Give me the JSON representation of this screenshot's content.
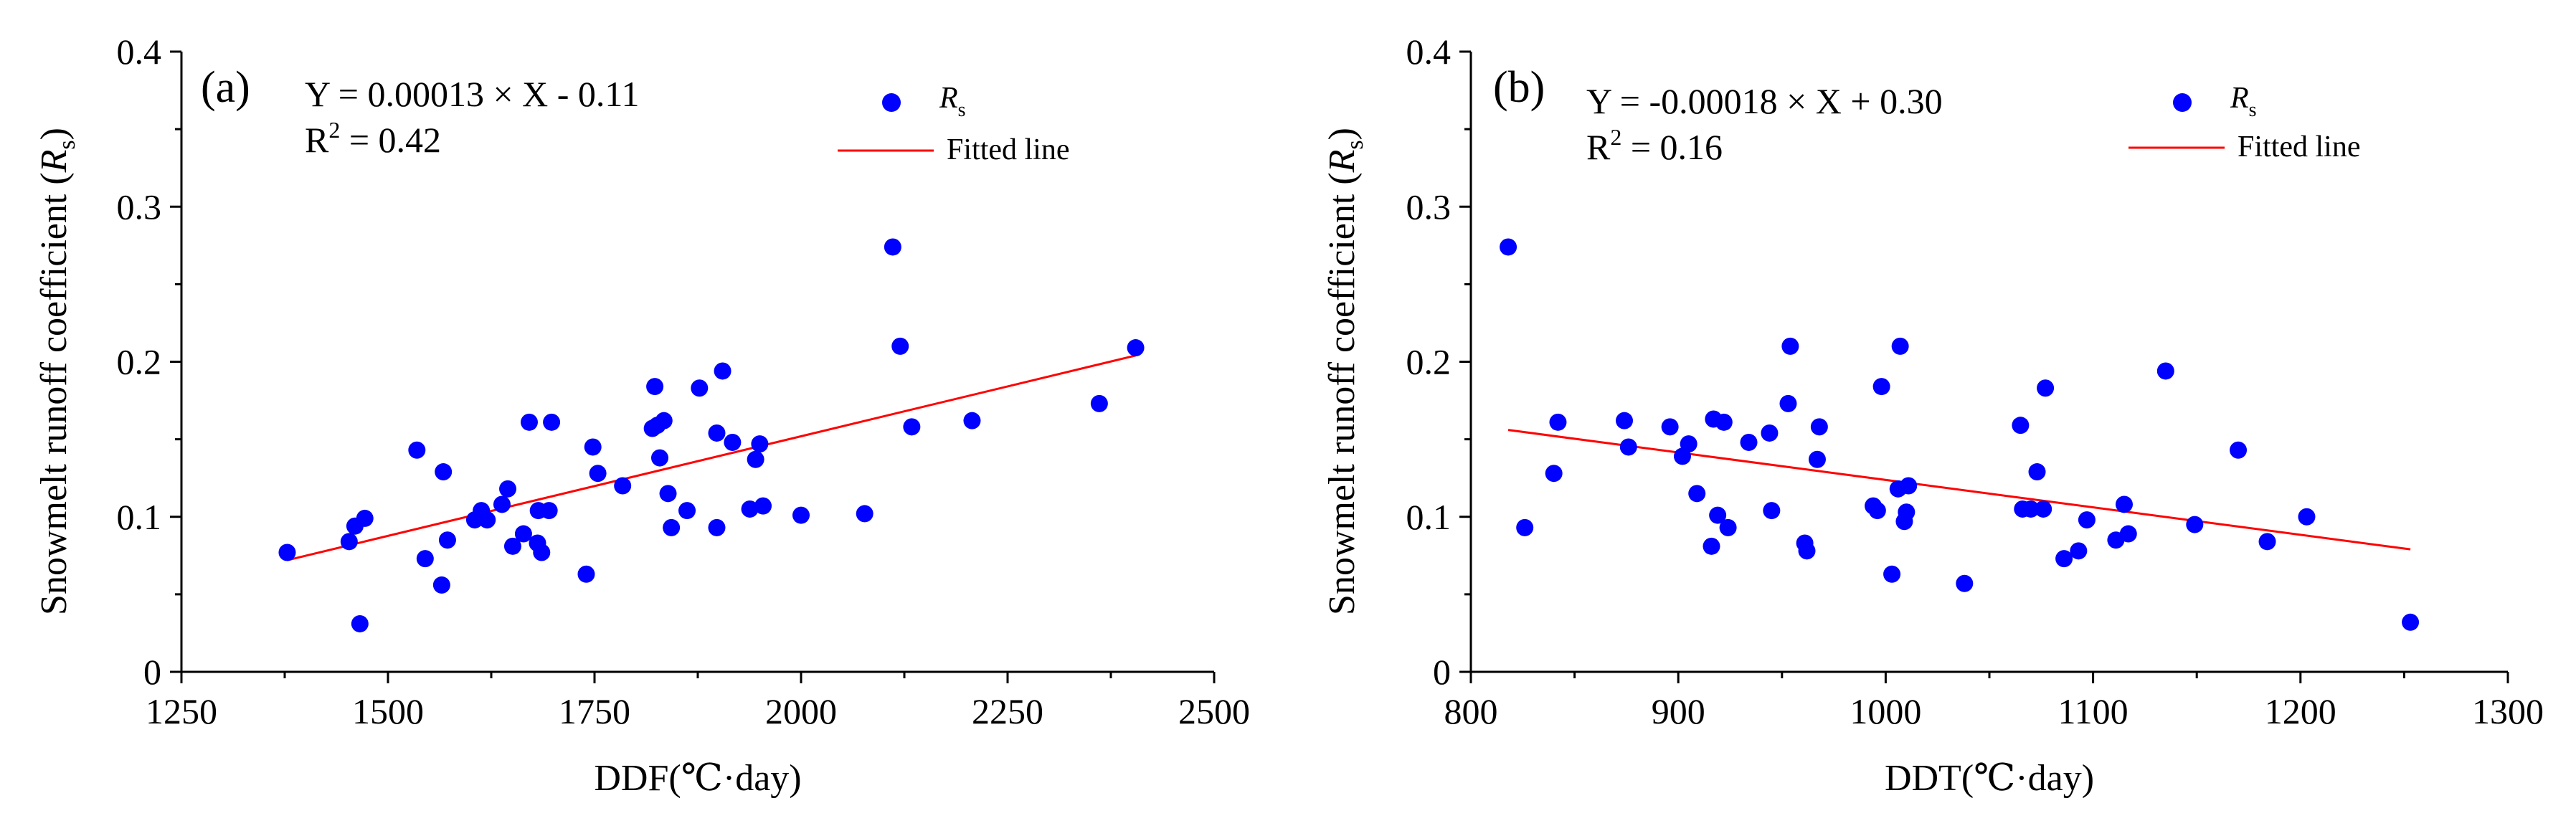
{
  "colors": {
    "points": "#0000ff",
    "fit": "#ff0000",
    "axis": "#000000"
  },
  "chart_data": [
    {
      "type": "scatter",
      "panel_label": "(a)",
      "equation": "Y = 0.00013  ×  X - 0.11",
      "r2_prefix": "R",
      "r2_sup": "2",
      "r2_value": " = 0.42",
      "xlabel": "DDF(℃·day)",
      "ylabel_main": "Snowmelt runoff coefficient (",
      "ylabel_italic": "R",
      "ylabel_sub": "s",
      "ylabel_end": ")",
      "legend": {
        "points_label": "R",
        "points_label_sub": "s",
        "line_label": "Fitted line",
        "position": "top-right"
      },
      "xlim": [
        1250,
        2500
      ],
      "ylim": [
        0,
        0.4
      ],
      "xticks": [
        1250,
        1500,
        1750,
        2000,
        2250,
        2500
      ],
      "xtick_labels": [
        "1250",
        "1500",
        "1750",
        "2000",
        "2250",
        "2500"
      ],
      "yticks": [
        0,
        0.1,
        0.2,
        0.3,
        0.4
      ],
      "ytick_labels": [
        "0",
        "0.1",
        "0.2",
        "0.3",
        "0.4"
      ],
      "fit": {
        "slope": 0.00013,
        "intercept": -0.11,
        "x_range": [
          1378,
          2405
        ],
        "y_range": [
          0.072,
          0.204
        ]
      },
      "points": {
        "x": [
          1378,
          1453,
          1460,
          1466,
          1472,
          1535,
          1545,
          1565,
          1567,
          1572,
          1605,
          1613,
          1620,
          1638,
          1645,
          1651,
          1664,
          1671,
          1681,
          1682,
          1686,
          1695,
          1698,
          1740,
          1748,
          1754,
          1784,
          1820,
          1823,
          1826,
          1829,
          1834,
          1839,
          1843,
          1862,
          1877,
          1898,
          1898,
          1905,
          1917,
          1938,
          1945,
          1950,
          1954,
          2000,
          2077,
          2111,
          2120,
          2134,
          2207,
          2361,
          2405
        ],
        "y": [
          0.077,
          0.084,
          0.094,
          0.031,
          0.099,
          0.143,
          0.073,
          0.056,
          0.129,
          0.085,
          0.098,
          0.104,
          0.098,
          0.108,
          0.118,
          0.081,
          0.089,
          0.161,
          0.083,
          0.104,
          0.077,
          0.104,
          0.161,
          0.063,
          0.145,
          0.128,
          0.12,
          0.157,
          0.184,
          0.159,
          0.138,
          0.162,
          0.115,
          0.093,
          0.104,
          0.183,
          0.154,
          0.093,
          0.194,
          0.148,
          0.105,
          0.137,
          0.147,
          0.107,
          0.101,
          0.102,
          0.274,
          0.21,
          0.158,
          0.162,
          0.173,
          0.209
        ]
      }
    },
    {
      "type": "scatter",
      "panel_label": "(b)",
      "equation": "Y = -0.00018  ×  X + 0.30",
      "r2_prefix": "R",
      "r2_sup": "2",
      "r2_value": " = 0.16",
      "xlabel": "DDT(℃·day)",
      "ylabel_main": "Snowmelt runoff coefficient (",
      "ylabel_italic": "R",
      "ylabel_sub": "s",
      "ylabel_end": ")",
      "legend": {
        "points_label": "R",
        "points_label_sub": "s",
        "line_label": "Fitted line",
        "position": "top-right"
      },
      "xlim": [
        800,
        1300
      ],
      "ylim": [
        0,
        0.4
      ],
      "xticks": [
        800,
        900,
        1000,
        1100,
        1200,
        1300
      ],
      "xtick_labels": [
        "800",
        "900",
        "1000",
        "1100",
        "1200",
        "1300"
      ],
      "yticks": [
        0,
        0.1,
        0.2,
        0.3,
        0.4
      ],
      "ytick_labels": [
        "0",
        "0.1",
        "0.2",
        "0.3",
        "0.4"
      ],
      "fit": {
        "slope": -0.00018,
        "intercept": 0.3,
        "x_range": [
          818,
          1253
        ],
        "y_range": [
          0.156,
          0.079
        ]
      },
      "points": {
        "x": [
          818,
          826,
          840,
          842,
          874,
          876,
          896,
          902,
          905,
          909,
          916,
          917,
          919,
          922,
          924,
          934,
          944,
          945,
          953,
          954,
          961,
          962,
          967,
          968,
          994,
          996,
          998,
          1003,
          1006,
          1007,
          1009,
          1010,
          1011,
          1038,
          1065,
          1066,
          1070,
          1073,
          1076,
          1077,
          1086,
          1093,
          1097,
          1111,
          1115,
          1117,
          1135,
          1149,
          1170,
          1184,
          1203,
          1253
        ],
        "y": [
          0.274,
          0.093,
          0.128,
          0.161,
          0.162,
          0.145,
          0.158,
          0.139,
          0.147,
          0.115,
          0.081,
          0.163,
          0.101,
          0.161,
          0.093,
          0.148,
          0.154,
          0.104,
          0.173,
          0.21,
          0.083,
          0.078,
          0.137,
          0.158,
          0.107,
          0.104,
          0.184,
          0.063,
          0.118,
          0.21,
          0.097,
          0.103,
          0.12,
          0.057,
          0.159,
          0.105,
          0.105,
          0.129,
          0.105,
          0.183,
          0.073,
          0.078,
          0.098,
          0.085,
          0.108,
          0.089,
          0.194,
          0.095,
          0.143,
          0.084,
          0.1,
          0.032
        ]
      }
    }
  ]
}
